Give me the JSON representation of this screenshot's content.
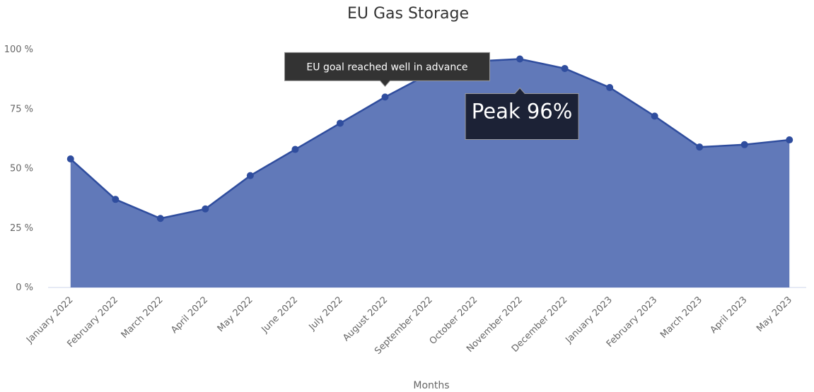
{
  "chart_data": {
    "type": "area",
    "title": "EU Gas Storage",
    "categories": [
      "January 2022",
      "February 2022",
      "March 2022",
      "April 2022",
      "May 2022",
      "June 2022",
      "July 2022",
      "August 2022",
      "September 2022",
      "October 2022",
      "November 2022",
      "December 2022",
      "January 2023",
      "February 2023",
      "March 2023",
      "April 2023",
      "May 2023"
    ],
    "values": [
      54,
      37,
      29,
      33,
      47,
      58,
      69,
      80,
      90,
      95,
      96,
      92,
      84,
      72,
      59,
      60,
      62
    ],
    "color": "#6179b9",
    "line_color": "#2f4d9e",
    "ylim": [
      0,
      100
    ],
    "yticks": [
      {
        "value": 0,
        "label": "0 %"
      },
      {
        "value": 25,
        "label": "25 %"
      },
      {
        "value": 50,
        "label": "50 %"
      },
      {
        "value": 75,
        "label": "75 %"
      },
      {
        "value": 100,
        "label": "100 %"
      }
    ],
    "x_label": "Months",
    "annotations": [
      "EU goal reached well in advance",
      "Peak 96%"
    ]
  }
}
